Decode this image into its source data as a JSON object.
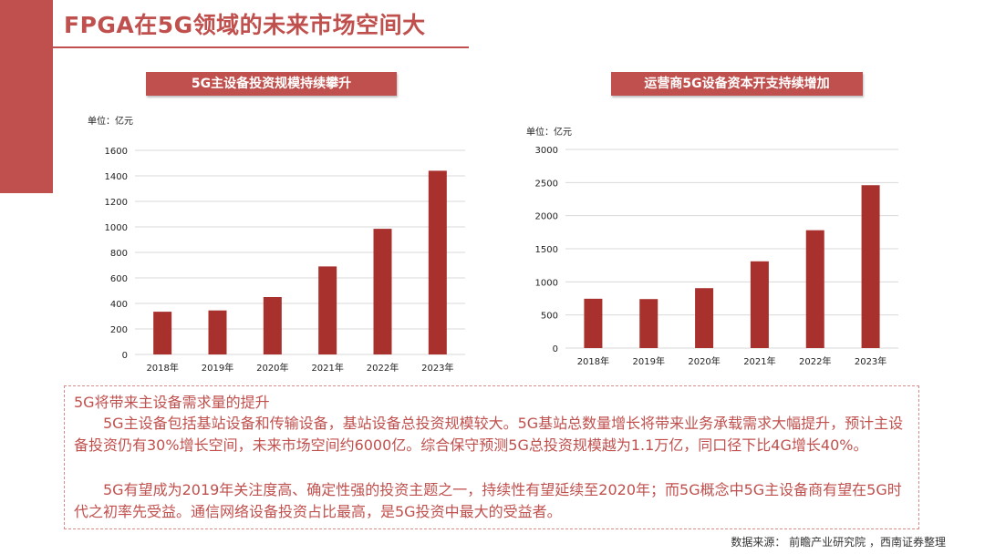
{
  "slide": {
    "title": "FPGA在5G领域的未来市场空间大",
    "source": "数据来源：  前瞻产业研究院 ，西南证券整理"
  },
  "text": {
    "heading": "5G将带来主设备需求量的提升",
    "para1": "5G主设备包括基站设备和传输设备，基站设备总投资规模较大。5G基站总数量增长将带来业务承载需求大幅提升，预计主设备投资仍有30%增长空间，未来市场空间约6000亿。综合保守预测5G总投资规模越为1.1万亿，同口径下比4G增长40%。",
    "para2": "5G有望成为2019年关注度高、确定性强的投资主题之一，持续性有望延续至2020年；而5G概念中5G主设备商有望在5G时代之初率先受益。通信网络设备投资占比最高，是5G投资中最大的受益者。"
  },
  "colors": {
    "accent": "#c0504d",
    "bar": "#a8302d",
    "grid": "#d9d9d9"
  },
  "chart_data": [
    {
      "type": "bar",
      "title": "5G主设备投资规模持续攀升",
      "unit": "单位：亿元",
      "categories": [
        "2018年",
        "2019年",
        "2020年",
        "2021年",
        "2022年",
        "2023年"
      ],
      "values": [
        335,
        345,
        450,
        690,
        985,
        1440
      ],
      "ylim": [
        0,
        1600
      ],
      "yticks": [
        0,
        200,
        400,
        600,
        800,
        1000,
        1200,
        1400,
        1600
      ],
      "grid": true
    },
    {
      "type": "bar",
      "title": "运营商5G设备资本开支持续增加",
      "unit": "单位：亿元",
      "categories": [
        "2018年",
        "2019年",
        "2020年",
        "2021年",
        "2022年",
        "2023年"
      ],
      "values": [
        745,
        740,
        905,
        1310,
        1780,
        2460
      ],
      "ylim": [
        0,
        3000
      ],
      "yticks": [
        0,
        500,
        1000,
        1500,
        2000,
        2500,
        3000
      ],
      "grid": true
    }
  ]
}
